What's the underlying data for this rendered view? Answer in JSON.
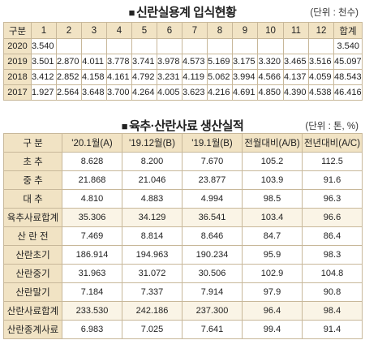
{
  "table1": {
    "title": "신란실용계 입식현황",
    "unit": "(단위 : 천수)",
    "headers": [
      "구분",
      "1",
      "2",
      "3",
      "4",
      "5",
      "6",
      "7",
      "8",
      "9",
      "10",
      "11",
      "12",
      "합계"
    ],
    "rows": [
      [
        "2020",
        "3.540",
        "",
        "",
        "",
        "",
        "",
        "",
        "",
        "",
        "",
        "",
        "",
        "3.540"
      ],
      [
        "2019",
        "3.501",
        "2.870",
        "4.011",
        "3.778",
        "3.741",
        "3.978",
        "4.573",
        "5.169",
        "3.175",
        "3.320",
        "3.465",
        "3.516",
        "45.097"
      ],
      [
        "2018",
        "3.412",
        "2.852",
        "4.158",
        "4.161",
        "4.792",
        "3.231",
        "4.119",
        "5.062",
        "3.994",
        "4.566",
        "4.137",
        "4.059",
        "48.543"
      ],
      [
        "2017",
        "1.927",
        "2.564",
        "3.648",
        "3.700",
        "4.264",
        "4.005",
        "3.623",
        "4.216",
        "4.691",
        "4.850",
        "4.390",
        "4.538",
        "46.416"
      ]
    ]
  },
  "table2": {
    "title": "육추·산란사료 생산실적",
    "unit": "(단위 : 톤, %)",
    "headers": [
      "구 분",
      "'20.1월(A)",
      "'19.12월(B)",
      "'19.1월(B)",
      "전월대비(A/B)",
      "전년대비(A/C)"
    ],
    "rows": [
      [
        "초 추",
        "8.628",
        "8.200",
        "7.670",
        "105.2",
        "112.5"
      ],
      [
        "중 추",
        "21.868",
        "21.046",
        "23.877",
        "103.9",
        "91.6"
      ],
      [
        "대 추",
        "4.810",
        "4.883",
        "4.994",
        "98.5",
        "96.3"
      ],
      [
        "육추사료합계",
        "35.306",
        "34.129",
        "36.541",
        "103.4",
        "96.6"
      ],
      [
        "산 란 전",
        "7.469",
        "8.814",
        "8.646",
        "84.7",
        "86.4"
      ],
      [
        "산란초기",
        "186.914",
        "194.963",
        "190.234",
        "95.9",
        "98.3"
      ],
      [
        "산란중기",
        "31.963",
        "31.072",
        "30.506",
        "102.9",
        "104.8"
      ],
      [
        "산란말기",
        "7.184",
        "7.337",
        "7.914",
        "97.9",
        "90.8"
      ],
      [
        "산란사료합계",
        "233.530",
        "242.186",
        "237.300",
        "96.4",
        "98.4"
      ],
      [
        "산란종계사료",
        "6.983",
        "7.025",
        "7.641",
        "99.4",
        "91.4"
      ]
    ]
  }
}
